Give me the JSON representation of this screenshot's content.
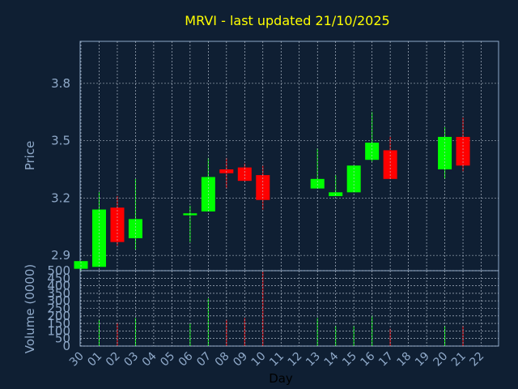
{
  "chart_data": {
    "type": "candlestick",
    "title": "MRVI - last updated 21/10/2025",
    "xlabel": "Day",
    "price_panel": {
      "ylabel": "Price",
      "ylim": [
        2.82,
        4.02
      ],
      "yticks": [
        "2.9",
        "3.2",
        "3.5",
        "3.8"
      ],
      "grid": true
    },
    "volume_panel": {
      "ylabel": "Volume (0000)",
      "ylim": [
        0,
        500
      ],
      "yticks": [
        "0",
        "50",
        "100",
        "150",
        "200",
        "250",
        "300",
        "350",
        "400",
        "450",
        "500"
      ],
      "grid": true
    },
    "x_tick_labels": [
      "30",
      "01",
      "02",
      "03",
      "04",
      "05",
      "06",
      "07",
      "08",
      "09",
      "10",
      "11",
      "12",
      "13",
      "14",
      "15",
      "16",
      "17",
      "18",
      "19",
      "20",
      "21",
      "22"
    ],
    "candles": [
      {
        "day": "30",
        "open": 2.83,
        "high": 2.87,
        "low": 2.82,
        "close": 2.87,
        "volume": 0
      },
      {
        "day": "01",
        "open": 2.84,
        "high": 3.23,
        "low": 2.84,
        "close": 3.14,
        "volume": 175
      },
      {
        "day": "02",
        "open": 3.15,
        "high": 3.21,
        "low": 2.95,
        "close": 2.97,
        "volume": 155
      },
      {
        "day": "03",
        "open": 2.99,
        "high": 3.3,
        "low": 2.93,
        "close": 3.09,
        "volume": 185
      },
      {
        "day": "06",
        "open": 3.11,
        "high": 3.16,
        "low": 2.97,
        "close": 3.12,
        "volume": 150
      },
      {
        "day": "07",
        "open": 3.13,
        "high": 3.41,
        "low": 3.13,
        "close": 3.31,
        "volume": 315
      },
      {
        "day": "08",
        "open": 3.35,
        "high": 3.41,
        "low": 3.25,
        "close": 3.33,
        "volume": 175
      },
      {
        "day": "09",
        "open": 3.36,
        "high": 3.38,
        "low": 3.29,
        "close": 3.29,
        "volume": 185
      },
      {
        "day": "10",
        "open": 3.32,
        "high": 3.37,
        "low": 3.14,
        "close": 3.19,
        "volume": 495
      },
      {
        "day": "13",
        "open": 3.25,
        "high": 3.46,
        "low": 3.25,
        "close": 3.3,
        "volume": 185
      },
      {
        "day": "14",
        "open": 3.21,
        "high": 3.32,
        "low": 3.21,
        "close": 3.23,
        "volume": 135
      },
      {
        "day": "15",
        "open": 3.23,
        "high": 3.37,
        "low": 3.23,
        "close": 3.37,
        "volume": 135
      },
      {
        "day": "16",
        "open": 3.4,
        "high": 3.65,
        "low": 3.39,
        "close": 3.49,
        "volume": 200
      },
      {
        "day": "17",
        "open": 3.45,
        "high": 3.52,
        "low": 3.3,
        "close": 3.3,
        "volume": 115
      },
      {
        "day": "20",
        "open": 3.35,
        "high": 3.57,
        "low": 3.3,
        "close": 3.52,
        "volume": 135
      },
      {
        "day": "21",
        "open": 3.52,
        "high": 3.62,
        "low": 3.34,
        "close": 3.37,
        "volume": 135
      }
    ],
    "colors": {
      "background": "#0f1f33",
      "up": "#00ff00",
      "down": "#ff0000",
      "grid": "#c8d2e0",
      "axis": "#8fa9c9",
      "title": "#ffff00",
      "day_label": "#000000"
    }
  }
}
